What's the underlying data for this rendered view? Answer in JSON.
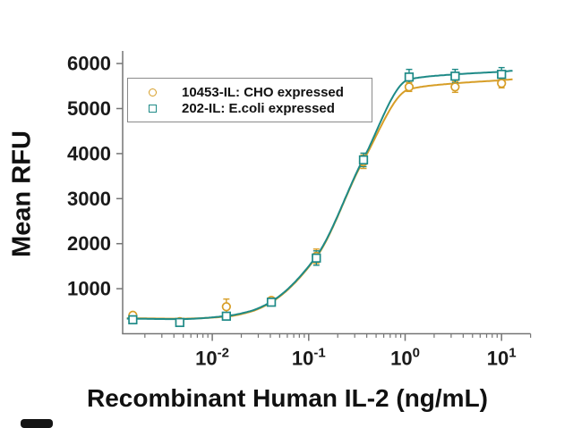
{
  "page": {
    "background": "#ffffff"
  },
  "figure": {
    "x_axis_label": "Recombinant Human IL-2 (ng/mL)",
    "y_axis_label": "Mean RFU"
  },
  "legend": {
    "items": [
      {
        "label": "10453-IL: CHO expressed",
        "marker": "open-circle",
        "color": "#D79E27"
      },
      {
        "label": "202-IL: E.coli expressed",
        "marker": "open-square",
        "color": "#1E8A87"
      }
    ]
  },
  "chart_data": {
    "type": "scatter",
    "title": "",
    "xlabel": "Recombinant Human IL-2 (ng/mL)",
    "ylabel": "Mean RFU",
    "x_scale": "log",
    "grid": false,
    "legend_position": "upper-left-inside",
    "xlim": [
      0.0012,
      20
    ],
    "ylim": [
      0,
      6300
    ],
    "y_ticks": [
      1000,
      2000,
      3000,
      4000,
      5000,
      6000
    ],
    "x_tick_base": "10",
    "x_tick_exponents": [
      -2,
      -1,
      0,
      1
    ],
    "x": [
      0.0015,
      0.0046,
      0.014,
      0.041,
      0.12,
      0.37,
      1.1,
      3.3,
      10
    ],
    "series": [
      {
        "name": "10453-IL: CHO expressed",
        "marker": "circle",
        "color": "#D79E27",
        "values": [
          410,
          270,
          600,
          740,
          1720,
          3820,
          5480,
          5480,
          5560
        ],
        "errors": [
          60,
          50,
          170,
          60,
          160,
          150,
          100,
          120,
          100
        ],
        "trend_x": [
          0.0013,
          0.0046,
          0.014,
          0.025,
          0.041,
          0.12,
          0.37,
          1.1,
          3.3,
          10,
          13
        ],
        "trend_y": [
          345,
          335,
          380,
          490,
          700,
          1700,
          3850,
          5430,
          5560,
          5630,
          5650
        ]
      },
      {
        "name": "202-IL: E.coli expressed",
        "marker": "square",
        "color": "#1E8A87",
        "values": [
          310,
          250,
          390,
          700,
          1680,
          3860,
          5700,
          5720,
          5760
        ],
        "errors": [
          60,
          50,
          60,
          60,
          160,
          150,
          170,
          150,
          150
        ],
        "trend_x": [
          0.0013,
          0.0046,
          0.014,
          0.025,
          0.041,
          0.12,
          0.37,
          1.1,
          3.3,
          10,
          13
        ],
        "trend_y": [
          335,
          325,
          395,
          505,
          715,
          1720,
          3890,
          5650,
          5760,
          5820,
          5840
        ]
      }
    ],
    "axis_color": "#757575",
    "text_color": "#1a1a1a"
  }
}
